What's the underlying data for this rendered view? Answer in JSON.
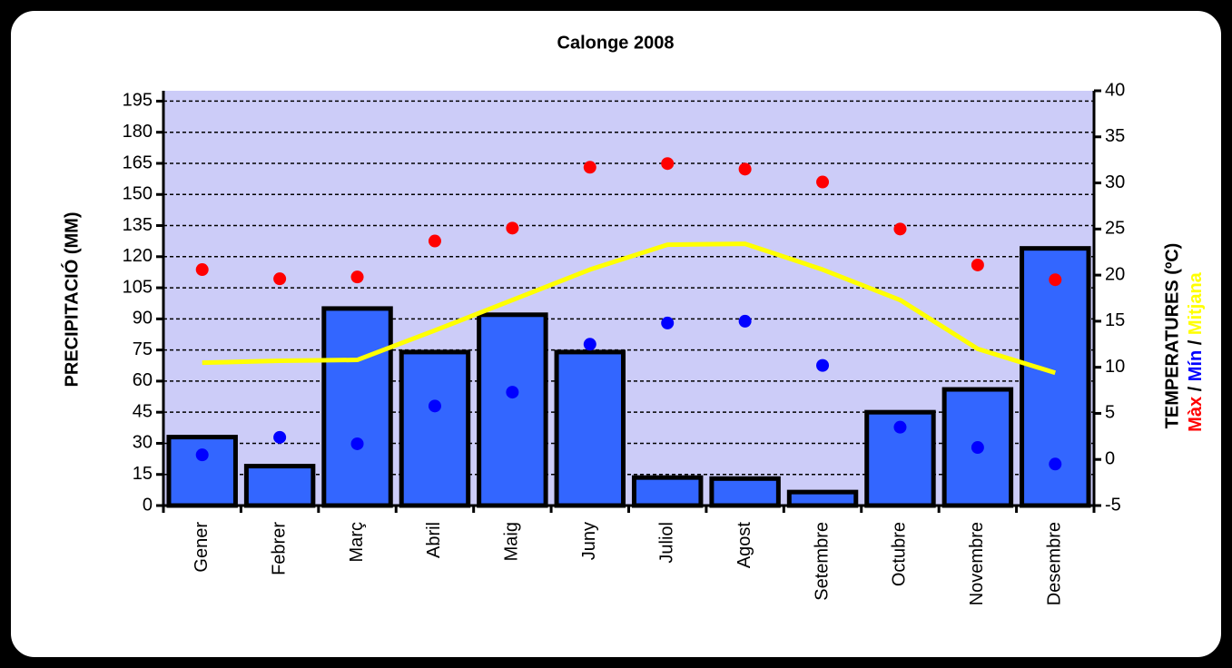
{
  "chart_data": {
    "type": "bar",
    "title": "Calonge 2008",
    "y_label": "PRECIPITACIÓ (MM)",
    "y2_label": "TEMPERATURES (ºC)",
    "y2_label_separator": "/",
    "categories": [
      "Gener",
      "Febrer",
      "Març",
      "Abril",
      "Maig",
      "Juny",
      "Juliol",
      "Agost",
      "Setembre",
      "Octubre",
      "Novembre",
      "Desembre"
    ],
    "series": [
      {
        "type": "bar",
        "color": "#3366ff",
        "values": [
          33,
          19,
          95,
          74,
          92,
          74,
          13.5,
          13,
          6.5,
          45,
          56,
          124
        ]
      },
      {
        "type": "scatter",
        "name": "Màx",
        "color": "#ff0000",
        "axis": "y2",
        "values": [
          20.6,
          19.6,
          19.8,
          23.7,
          25.1,
          31.7,
          32.1,
          31.5,
          30.1,
          25.0,
          21.1,
          19.5
        ]
      },
      {
        "type": "scatter",
        "name": "Mín",
        "color": "#0000ff",
        "axis": "y2",
        "values": [
          0.5,
          2.4,
          1.7,
          5.8,
          7.3,
          12.5,
          14.8,
          15.0,
          10.2,
          3.5,
          1.3,
          -0.5
        ]
      },
      {
        "type": "line",
        "name": "Mitjana",
        "color": "#ffff00",
        "axis": "y2",
        "values": [
          10.5,
          10.7,
          10.8,
          14.0,
          17.3,
          20.6,
          23.3,
          23.4,
          20.6,
          17.3,
          12.0,
          9.4
        ]
      }
    ],
    "ylim": [
      0,
      200
    ],
    "yticks": [
      0,
      15,
      30,
      45,
      60,
      75,
      90,
      105,
      120,
      135,
      150,
      165,
      180,
      195
    ],
    "y2lim": [
      -5,
      40
    ],
    "y2ticks": [
      -5,
      0,
      5,
      10,
      15,
      20,
      25,
      30,
      35,
      40
    ],
    "grid": true
  }
}
